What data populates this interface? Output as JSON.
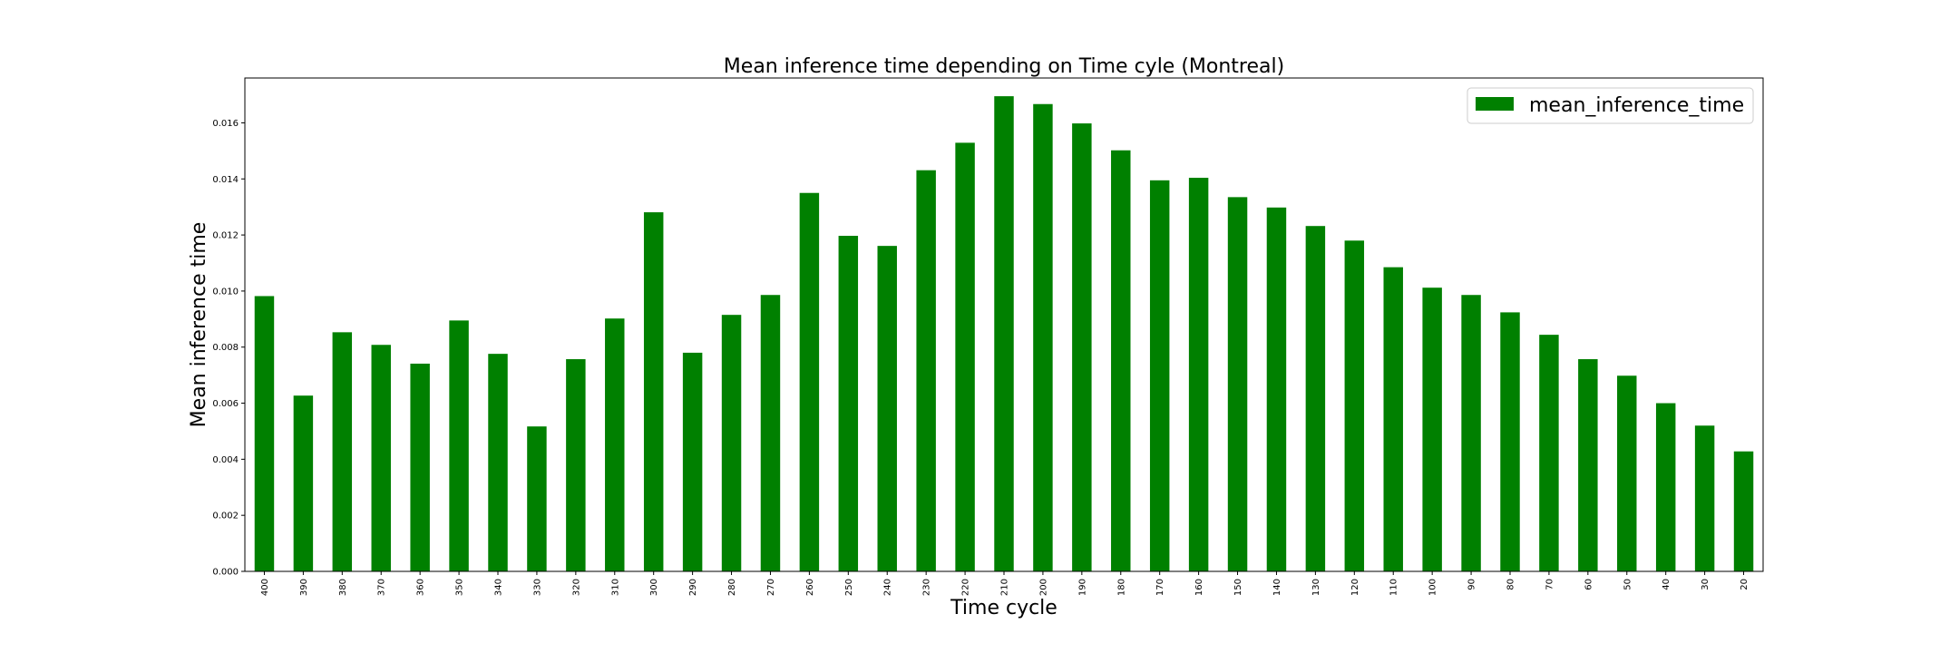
{
  "chart_data": {
    "type": "bar",
    "title": "Mean inference time depending on Time cyle (Montreal)",
    "xlabel": "Time cycle",
    "ylabel": "Mean inference time",
    "categories": [
      "400",
      "390",
      "380",
      "370",
      "360",
      "350",
      "340",
      "330",
      "320",
      "310",
      "300",
      "290",
      "280",
      "270",
      "260",
      "250",
      "240",
      "230",
      "220",
      "210",
      "200",
      "190",
      "180",
      "170",
      "160",
      "150",
      "140",
      "130",
      "120",
      "110",
      "100",
      "90",
      "80",
      "70",
      "60",
      "50",
      "40",
      "30",
      "20"
    ],
    "series": [
      {
        "name": "mean_inference_time",
        "color": "#008000",
        "values": [
          0.00982,
          0.00627,
          0.00853,
          0.00808,
          0.00741,
          0.00895,
          0.00776,
          0.00517,
          0.00757,
          0.00902,
          0.01281,
          0.0078,
          0.00915,
          0.00986,
          0.0135,
          0.01197,
          0.01161,
          0.01431,
          0.01529,
          0.01695,
          0.01667,
          0.01598,
          0.01502,
          0.01395,
          0.01404,
          0.01335,
          0.01298,
          0.01232,
          0.0118,
          0.01085,
          0.01012,
          0.00986,
          0.00924,
          0.00844,
          0.00757,
          0.00698,
          0.006,
          0.0052,
          0.00428
        ]
      }
    ],
    "yticks": [
      "0.000",
      "0.002",
      "0.004",
      "0.006",
      "0.008",
      "0.010",
      "0.012",
      "0.014",
      "0.016"
    ],
    "ylim": [
      0,
      0.0176
    ],
    "grid": false,
    "legend_position": "top-right"
  }
}
